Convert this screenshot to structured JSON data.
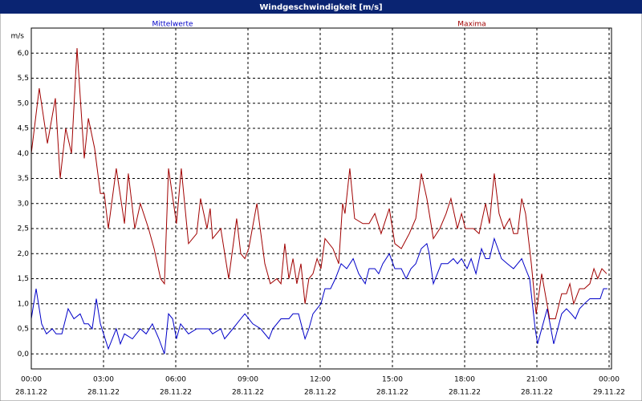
{
  "chart_data": {
    "type": "line",
    "title": "Windgeschwindigkeit [m/s]",
    "ylabel": "m/s",
    "xlim": [
      0,
      24.1
    ],
    "ylim": [
      -0.3,
      6.5
    ],
    "grid": true,
    "xticks": [
      {
        "value": 0,
        "label": "00:00"
      },
      {
        "value": 3,
        "label": "03:00"
      },
      {
        "value": 6,
        "label": "06:00"
      },
      {
        "value": 9,
        "label": "09:00"
      },
      {
        "value": 12,
        "label": "12:00"
      },
      {
        "value": 15,
        "label": "15:00"
      },
      {
        "value": 18,
        "label": "18:00"
      },
      {
        "value": 21,
        "label": "21:00"
      },
      {
        "value": 24,
        "label": "00:00"
      }
    ],
    "xtick_dates": [
      "28.11.22",
      "28.11.22",
      "28.11.22",
      "28.11.22",
      "28.11.22",
      "28.11.22",
      "28.11.22",
      "28.11.22",
      "29.11.22"
    ],
    "yticks": [
      {
        "value": 0,
        "label": "0,0"
      },
      {
        "value": 0.5,
        "label": "0,5"
      },
      {
        "value": 1,
        "label": "1,0"
      },
      {
        "value": 1.5,
        "label": "1,5"
      },
      {
        "value": 2,
        "label": "2,0"
      },
      {
        "value": 2.5,
        "label": "2,5"
      },
      {
        "value": 3,
        "label": "3,0"
      },
      {
        "value": 3.5,
        "label": "3,5"
      },
      {
        "value": 4,
        "label": "4,0"
      },
      {
        "value": 4.5,
        "label": "4,5"
      },
      {
        "value": 5,
        "label": "5,0"
      },
      {
        "value": 5.5,
        "label": "5,5"
      },
      {
        "value": 6,
        "label": "6,0"
      }
    ],
    "series": [
      {
        "name": "Mittelwerte",
        "color": "#0000c8",
        "x": [
          0,
          0.2,
          0.43,
          0.63,
          0.87,
          1.03,
          1.27,
          1.53,
          1.77,
          2.03,
          2.2,
          2.37,
          2.53,
          2.7,
          2.87,
          3.2,
          3.53,
          3.7,
          3.87,
          4.2,
          4.53,
          4.77,
          5.03,
          5.3,
          5.53,
          5.7,
          5.87,
          6.03,
          6.2,
          6.53,
          6.87,
          7.37,
          7.53,
          7.87,
          8.03,
          8.37,
          8.7,
          8.87,
          9.2,
          9.53,
          9.87,
          10.03,
          10.37,
          10.7,
          10.87,
          11.1,
          11.37,
          11.53,
          11.7,
          12.03,
          12.2,
          12.43,
          12.63,
          12.87,
          13.1,
          13.37,
          13.6,
          13.87,
          14.03,
          14.27,
          14.43,
          14.6,
          14.87,
          15.1,
          15.37,
          15.57,
          15.77,
          15.97,
          16.2,
          16.43,
          16.53,
          16.7,
          17.03,
          17.3,
          17.53,
          17.7,
          17.87,
          18.1,
          18.27,
          18.47,
          18.7,
          18.87,
          19.03,
          19.23,
          19.53,
          19.77,
          20.03,
          20.2,
          20.37,
          20.53,
          20.7,
          20.93,
          21.03,
          21.2,
          21.43,
          21.7,
          22.03,
          22.23,
          22.43,
          22.6,
          22.77,
          22.97,
          23.2,
          23.43,
          23.63,
          23.77,
          23.93
        ],
        "values": [
          0.7,
          1.3,
          0.6,
          0.4,
          0.5,
          0.4,
          0.4,
          0.9,
          0.7,
          0.8,
          0.6,
          0.6,
          0.5,
          1.1,
          0.6,
          0.1,
          0.5,
          0.2,
          0.4,
          0.3,
          0.5,
          0.4,
          0.6,
          0.3,
          0.0,
          0.8,
          0.7,
          0.3,
          0.6,
          0.4,
          0.5,
          0.5,
          0.4,
          0.5,
          0.3,
          0.5,
          0.7,
          0.8,
          0.6,
          0.5,
          0.3,
          0.5,
          0.7,
          0.7,
          0.8,
          0.8,
          0.3,
          0.5,
          0.8,
          1.0,
          1.3,
          1.3,
          1.5,
          1.8,
          1.7,
          1.9,
          1.6,
          1.4,
          1.7,
          1.7,
          1.6,
          1.8,
          2.0,
          1.7,
          1.7,
          1.5,
          1.7,
          1.8,
          2.1,
          2.2,
          2.0,
          1.4,
          1.8,
          1.8,
          1.9,
          1.8,
          1.9,
          1.7,
          1.9,
          1.6,
          2.1,
          1.9,
          1.9,
          2.3,
          1.9,
          1.8,
          1.7,
          1.8,
          1.9,
          1.7,
          1.5,
          0.5,
          0.2,
          0.5,
          0.9,
          0.2,
          0.8,
          0.9,
          0.8,
          0.7,
          0.9,
          1.0,
          1.1,
          1.1,
          1.1,
          1.3,
          1.3
        ]
      },
      {
        "name": "Maxima",
        "color": "#a00000",
        "x": [
          0,
          0.33,
          0.67,
          1,
          1.2,
          1.43,
          1.67,
          1.9,
          2.2,
          2.37,
          2.63,
          2.87,
          3.03,
          3.2,
          3.53,
          3.87,
          4.03,
          4.3,
          4.53,
          4.87,
          5.1,
          5.37,
          5.53,
          5.7,
          6.03,
          6.23,
          6.53,
          6.87,
          7.03,
          7.3,
          7.43,
          7.53,
          7.87,
          8.2,
          8.53,
          8.7,
          8.87,
          9.03,
          9.37,
          9.7,
          9.93,
          10.2,
          10.37,
          10.53,
          10.7,
          10.87,
          11.03,
          11.2,
          11.37,
          11.53,
          11.7,
          11.87,
          12.03,
          12.2,
          12.53,
          12.77,
          12.93,
          13.03,
          13.23,
          13.43,
          13.77,
          14.03,
          14.27,
          14.53,
          14.87,
          15.1,
          15.37,
          15.7,
          15.97,
          16.2,
          16.43,
          16.7,
          16.97,
          17.23,
          17.43,
          17.7,
          17.87,
          18.03,
          18.37,
          18.6,
          18.87,
          19.03,
          19.23,
          19.43,
          19.63,
          19.87,
          20.03,
          20.2,
          20.37,
          20.53,
          20.77,
          20.97,
          21.2,
          21.53,
          21.77,
          22.03,
          22.23,
          22.37,
          22.53,
          22.77,
          22.97,
          23.2,
          23.37,
          23.53,
          23.7,
          23.9
        ],
        "values": [
          4.0,
          5.3,
          4.2,
          5.1,
          3.5,
          4.5,
          4.0,
          6.1,
          3.9,
          4.7,
          4.1,
          3.2,
          3.2,
          2.5,
          3.7,
          2.6,
          3.6,
          2.5,
          3.0,
          2.5,
          2.1,
          1.5,
          1.4,
          3.7,
          2.6,
          3.7,
          2.2,
          2.4,
          3.1,
          2.5,
          2.9,
          2.3,
          2.5,
          1.5,
          2.7,
          2.0,
          1.9,
          2.1,
          3.0,
          1.8,
          1.4,
          1.5,
          1.4,
          2.2,
          1.5,
          1.9,
          1.4,
          1.8,
          1.0,
          1.5,
          1.6,
          1.9,
          1.7,
          2.3,
          2.1,
          1.8,
          3.0,
          2.8,
          3.7,
          2.7,
          2.6,
          2.6,
          2.8,
          2.4,
          2.9,
          2.2,
          2.1,
          2.4,
          2.7,
          3.6,
          3.1,
          2.3,
          2.5,
          2.8,
          3.1,
          2.5,
          2.8,
          2.5,
          2.5,
          2.4,
          3.0,
          2.6,
          3.6,
          2.8,
          2.5,
          2.7,
          2.4,
          2.4,
          3.1,
          2.8,
          1.8,
          0.8,
          1.6,
          0.7,
          0.7,
          1.2,
          1.2,
          1.4,
          1.0,
          1.3,
          1.3,
          1.4,
          1.7,
          1.5,
          1.7,
          1.6
        ]
      }
    ]
  }
}
